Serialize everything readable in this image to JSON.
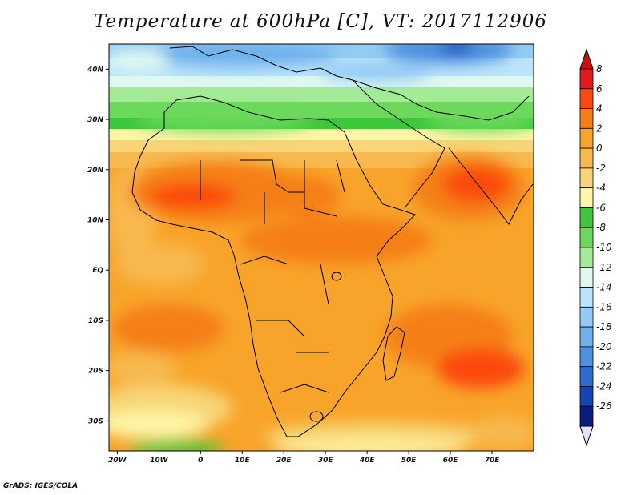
{
  "title": "Temperature at 600hPa [C], VT: 2017112906",
  "credit": "GrADS: IGES/COLA",
  "map": {
    "lon_range": [
      -22,
      80
    ],
    "lat_range": [
      -36,
      45
    ],
    "lon_ticks": [
      {
        "v": -20,
        "label": "20W"
      },
      {
        "v": -10,
        "label": "10W"
      },
      {
        "v": 0,
        "label": "0"
      },
      {
        "v": 10,
        "label": "10E"
      },
      {
        "v": 20,
        "label": "20E"
      },
      {
        "v": 30,
        "label": "30E"
      },
      {
        "v": 40,
        "label": "40E"
      },
      {
        "v": 50,
        "label": "50E"
      },
      {
        "v": 60,
        "label": "60E"
      },
      {
        "v": 70,
        "label": "70E"
      }
    ],
    "lat_ticks": [
      {
        "v": 40,
        "label": "40N"
      },
      {
        "v": 30,
        "label": "30N"
      },
      {
        "v": 20,
        "label": "20N"
      },
      {
        "v": 10,
        "label": "10N"
      },
      {
        "v": 0,
        "label": "EQ"
      },
      {
        "v": -10,
        "label": "10S"
      },
      {
        "v": -20,
        "label": "20S"
      },
      {
        "v": -30,
        "label": "30S"
      }
    ]
  },
  "colorbar": {
    "levels": [
      8,
      6,
      4,
      2,
      0,
      -2,
      -4,
      -6,
      -8,
      -10,
      -12,
      -14,
      -16,
      -18,
      -20,
      -22,
      -24,
      -26
    ],
    "colors": [
      "#e31a1c",
      "#fb4a0e",
      "#f57f16",
      "#f8a42a",
      "#f7b94f",
      "#f8d576",
      "#fef5a5",
      "#3dc73a",
      "#6cd95c",
      "#a3ec95",
      "#dff8f0",
      "#bce4fb",
      "#93cbf4",
      "#6fb1ec",
      "#4e90df",
      "#2e6bd2",
      "#1743b4",
      "#0c1d80"
    ],
    "top_color": "#c80f0f",
    "bottom_color": "#e8e0fa"
  }
}
